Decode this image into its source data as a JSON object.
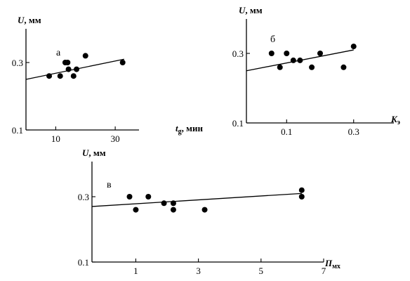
{
  "chart_data": [
    {
      "type": "scatter",
      "panel_label": "а",
      "ylabel_var": "U",
      "ylabel_unit": ", мм",
      "xlabel_var": "t",
      "xlabel_sub": "g",
      "xlabel_unit": ", мин",
      "xlim": [
        0,
        38
      ],
      "ylim": [
        0.1,
        0.5
      ],
      "xticks": [
        10,
        30
      ],
      "yticks": [
        0.1,
        0.3
      ],
      "points": [
        {
          "x": 7.8,
          "y": 0.26
        },
        {
          "x": 11.5,
          "y": 0.26
        },
        {
          "x": 13.2,
          "y": 0.3
        },
        {
          "x": 14.0,
          "y": 0.3
        },
        {
          "x": 14.3,
          "y": 0.28
        },
        {
          "x": 16.0,
          "y": 0.26
        },
        {
          "x": 17.0,
          "y": 0.28
        },
        {
          "x": 20.0,
          "y": 0.32
        },
        {
          "x": 32.5,
          "y": 0.3
        }
      ],
      "trend": {
        "x": [
          0,
          33
        ],
        "y": [
          0.25,
          0.31
        ]
      }
    },
    {
      "type": "scatter",
      "panel_label": "б",
      "ylabel_var": "U",
      "ylabel_unit": ", мм",
      "xlabel_var": "K",
      "xlabel_sub": "э",
      "xlabel_unit": "",
      "xlim": [
        -0.02,
        0.42
      ],
      "ylim": [
        0.1,
        0.5
      ],
      "xticks": [
        0.1,
        0.3
      ],
      "yticks": [
        0.1,
        0.3
      ],
      "points": [
        {
          "x": 0.055,
          "y": 0.3
        },
        {
          "x": 0.08,
          "y": 0.26
        },
        {
          "x": 0.1,
          "y": 0.3
        },
        {
          "x": 0.12,
          "y": 0.28
        },
        {
          "x": 0.14,
          "y": 0.28
        },
        {
          "x": 0.175,
          "y": 0.26
        },
        {
          "x": 0.2,
          "y": 0.3
        },
        {
          "x": 0.27,
          "y": 0.26
        },
        {
          "x": 0.3,
          "y": 0.32
        }
      ],
      "trend": {
        "x": [
          -0.02,
          0.3
        ],
        "y": [
          0.25,
          0.31
        ]
      }
    },
    {
      "type": "scatter",
      "panel_label": "в",
      "ylabel_var": "U",
      "ylabel_unit": ", мм",
      "xlabel_var": "П",
      "xlabel_sub": "мх",
      "xlabel_unit": "",
      "xlim": [
        -0.4,
        7
      ],
      "ylim": [
        0.1,
        0.5
      ],
      "xticks": [
        1,
        3,
        5,
        7
      ],
      "yticks": [
        0.1,
        0.3
      ],
      "points": [
        {
          "x": 0.8,
          "y": 0.3
        },
        {
          "x": 1.0,
          "y": 0.26
        },
        {
          "x": 1.4,
          "y": 0.3
        },
        {
          "x": 1.9,
          "y": 0.28
        },
        {
          "x": 2.2,
          "y": 0.28
        },
        {
          "x": 2.2,
          "y": 0.26
        },
        {
          "x": 3.2,
          "y": 0.26
        },
        {
          "x": 6.3,
          "y": 0.32
        },
        {
          "x": 6.3,
          "y": 0.3
        }
      ],
      "trend": {
        "x": [
          -0.4,
          6.3
        ],
        "y": [
          0.27,
          0.31
        ]
      }
    }
  ]
}
